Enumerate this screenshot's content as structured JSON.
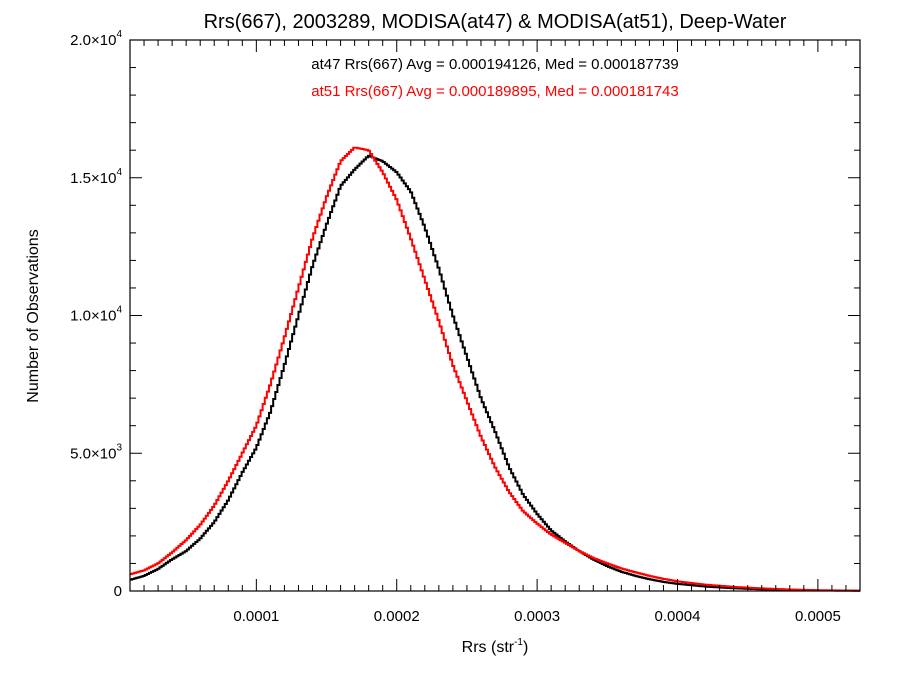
{
  "chart_data": {
    "type": "line",
    "title": "Rrs(667), 2003289, MODISA(at47) & MODISA(at51), Deep-Water",
    "xlabel": "Rrs (str",
    "xlabel_sup": "-1",
    "xlabel_close": ")",
    "ylabel": "Number of Observations",
    "xlim": [
      1e-05,
      0.00053
    ],
    "ylim": [
      0,
      20000
    ],
    "x_ticks": [
      {
        "value": 0.0001,
        "label": "0.0001"
      },
      {
        "value": 0.0002,
        "label": "0.0002"
      },
      {
        "value": 0.0003,
        "label": "0.0003"
      },
      {
        "value": 0.0004,
        "label": "0.0004"
      },
      {
        "value": 0.0005,
        "label": "0.0005"
      }
    ],
    "y_ticks": [
      {
        "value": 0,
        "label": "0",
        "sup": ""
      },
      {
        "value": 5000,
        "label": "5.0×10",
        "sup": "3"
      },
      {
        "value": 10000,
        "label": "1.0×10",
        "sup": "4"
      },
      {
        "value": 15000,
        "label": "1.5×10",
        "sup": "4"
      },
      {
        "value": 20000,
        "label": "2.0×10",
        "sup": "4"
      }
    ],
    "annotations": [
      {
        "text": "at47 Rrs(667) Avg = 0.000194126, Med = 0.000187739",
        "color": "#000000"
      },
      {
        "text": "at51 Rrs(667) Avg = 0.000189895, Med = 0.000181743",
        "color": "#ff0000"
      }
    ],
    "series": [
      {
        "name": "at47",
        "color": "#000000",
        "points": [
          [
            1e-05,
            400
          ],
          [
            2e-05,
            550
          ],
          [
            3e-05,
            800
          ],
          [
            4e-05,
            1150
          ],
          [
            5e-05,
            1450
          ],
          [
            6e-05,
            1900
          ],
          [
            7e-05,
            2500
          ],
          [
            8e-05,
            3300
          ],
          [
            9e-05,
            4300
          ],
          [
            0.0001,
            5200
          ],
          [
            0.00011,
            6500
          ],
          [
            0.00012,
            8200
          ],
          [
            0.00013,
            10000
          ],
          [
            0.00014,
            11800
          ],
          [
            0.00015,
            13300
          ],
          [
            0.00016,
            14700
          ],
          [
            0.00017,
            15300
          ],
          [
            0.00018,
            15800
          ],
          [
            0.00019,
            15600
          ],
          [
            0.0002,
            15200
          ],
          [
            0.00021,
            14500
          ],
          [
            0.00022,
            13200
          ],
          [
            0.00023,
            11700
          ],
          [
            0.00024,
            10000
          ],
          [
            0.00025,
            8500
          ],
          [
            0.00026,
            7000
          ],
          [
            0.00027,
            5800
          ],
          [
            0.00028,
            4500
          ],
          [
            0.00029,
            3500
          ],
          [
            0.0003,
            2800
          ],
          [
            0.00031,
            2200
          ],
          [
            0.00032,
            1800
          ],
          [
            0.00033,
            1450
          ],
          [
            0.00034,
            1150
          ],
          [
            0.00035,
            900
          ],
          [
            0.00036,
            700
          ],
          [
            0.00037,
            550
          ],
          [
            0.00038,
            430
          ],
          [
            0.00039,
            330
          ],
          [
            0.0004,
            260
          ],
          [
            0.00042,
            160
          ],
          [
            0.00044,
            100
          ],
          [
            0.00046,
            60
          ],
          [
            0.00048,
            35
          ],
          [
            0.0005,
            20
          ],
          [
            0.00053,
            10
          ]
        ]
      },
      {
        "name": "at51",
        "color": "#ff0000",
        "points": [
          [
            1e-05,
            600
          ],
          [
            2e-05,
            750
          ],
          [
            3e-05,
            1000
          ],
          [
            4e-05,
            1400
          ],
          [
            5e-05,
            1850
          ],
          [
            6e-05,
            2400
          ],
          [
            7e-05,
            3100
          ],
          [
            8e-05,
            4000
          ],
          [
            9e-05,
            5000
          ],
          [
            0.0001,
            6000
          ],
          [
            0.00011,
            7500
          ],
          [
            0.00012,
            9200
          ],
          [
            0.00013,
            11000
          ],
          [
            0.00014,
            12800
          ],
          [
            0.00015,
            14300
          ],
          [
            0.00016,
            15600
          ],
          [
            0.00017,
            16100
          ],
          [
            0.00018,
            16000
          ],
          [
            0.00019,
            15200
          ],
          [
            0.0002,
            14200
          ],
          [
            0.00021,
            12800
          ],
          [
            0.00022,
            11300
          ],
          [
            0.00023,
            9800
          ],
          [
            0.00024,
            8200
          ],
          [
            0.00025,
            6900
          ],
          [
            0.00026,
            5600
          ],
          [
            0.00027,
            4500
          ],
          [
            0.00028,
            3600
          ],
          [
            0.00029,
            2900
          ],
          [
            0.0003,
            2450
          ],
          [
            0.00031,
            2050
          ],
          [
            0.00032,
            1750
          ],
          [
            0.00033,
            1450
          ],
          [
            0.00034,
            1200
          ],
          [
            0.00035,
            1000
          ],
          [
            0.00036,
            820
          ],
          [
            0.00037,
            680
          ],
          [
            0.00038,
            550
          ],
          [
            0.00039,
            440
          ],
          [
            0.0004,
            350
          ],
          [
            0.00042,
            230
          ],
          [
            0.00044,
            150
          ],
          [
            0.00046,
            95
          ],
          [
            0.00048,
            55
          ],
          [
            0.0005,
            30
          ],
          [
            0.00053,
            12
          ]
        ]
      }
    ]
  }
}
